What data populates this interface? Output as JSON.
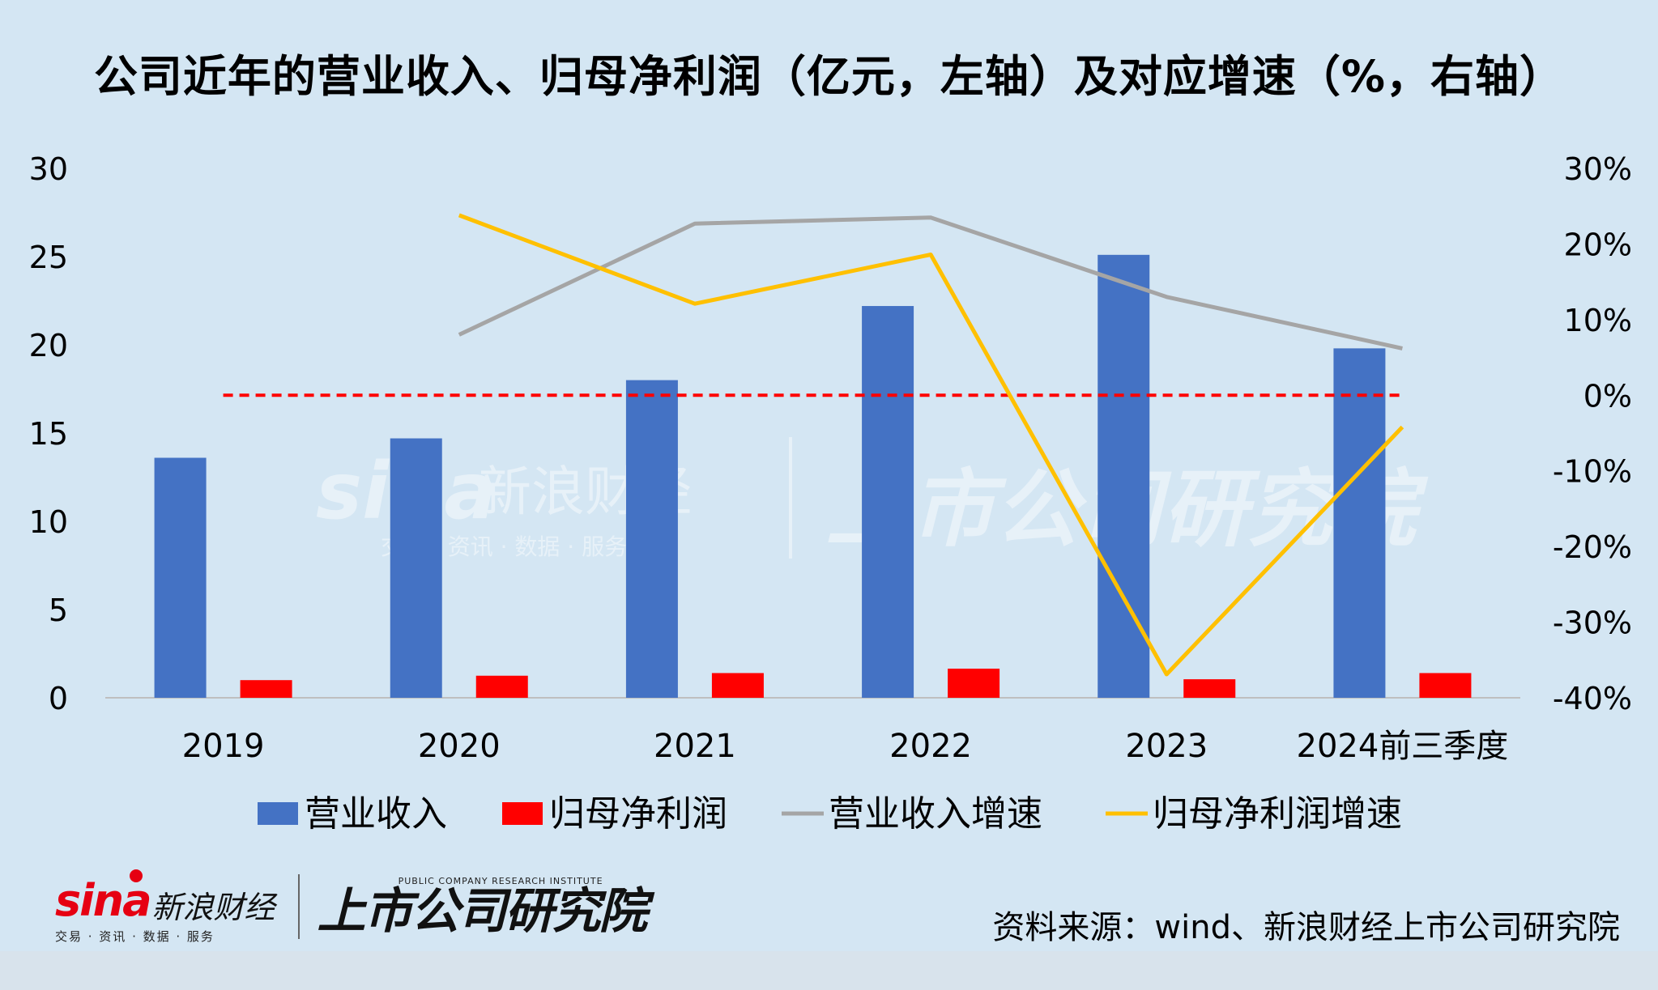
{
  "title": "公司近年的营业收入、归母净利润（亿元，左轴）及对应增速（%，右轴）",
  "source": "资料来源：wind、新浪财经上市公司研究院",
  "branding": {
    "sina_word": "sina",
    "sina_cn": "新浪财经",
    "sina_sub": "交易 · 资讯 · 数据 · 服务",
    "institute_en": "PUBLIC COMPANY RESEARCH INSTITUTE",
    "institute_cn": "上市公司研究院"
  },
  "chart_data": {
    "type": "bar",
    "categories": [
      "2019",
      "2020",
      "2021",
      "2022",
      "2023",
      "2024前三季度"
    ],
    "y_left": {
      "ticks": [
        "0",
        "5",
        "10",
        "15",
        "20",
        "25",
        "30"
      ],
      "ylim": [
        0,
        30
      ]
    },
    "y_right": {
      "ticks": [
        "-40%",
        "-30%",
        "-20%",
        "-10%",
        "0%",
        "10%",
        "20%",
        "30%"
      ],
      "ylim": [
        -40,
        30
      ]
    },
    "series": [
      {
        "name": "营业收入",
        "kind": "bar",
        "axis": "left",
        "color": "#4472c4",
        "values": [
          13.6,
          14.7,
          18.0,
          22.2,
          25.1,
          19.8
        ]
      },
      {
        "name": "归母净利润",
        "kind": "bar",
        "axis": "left",
        "color": "#ff0000",
        "values": [
          1.0,
          1.25,
          1.4,
          1.65,
          1.05,
          1.4
        ]
      },
      {
        "name": "营业收入增速",
        "kind": "line",
        "axis": "right",
        "color": "#a5a5a5",
        "values": [
          null,
          8.0,
          22.7,
          23.5,
          13.0,
          6.2
        ]
      },
      {
        "name": "归母净利润增速",
        "kind": "line",
        "axis": "right",
        "color": "#ffc000",
        "values": [
          null,
          23.8,
          12.1,
          18.6,
          -36.9,
          -4.2
        ]
      }
    ],
    "reference_line": {
      "axis": "right",
      "value": 0,
      "color": "#ff0000",
      "style": "dashed"
    },
    "legend_position": "bottom",
    "grid": false
  }
}
